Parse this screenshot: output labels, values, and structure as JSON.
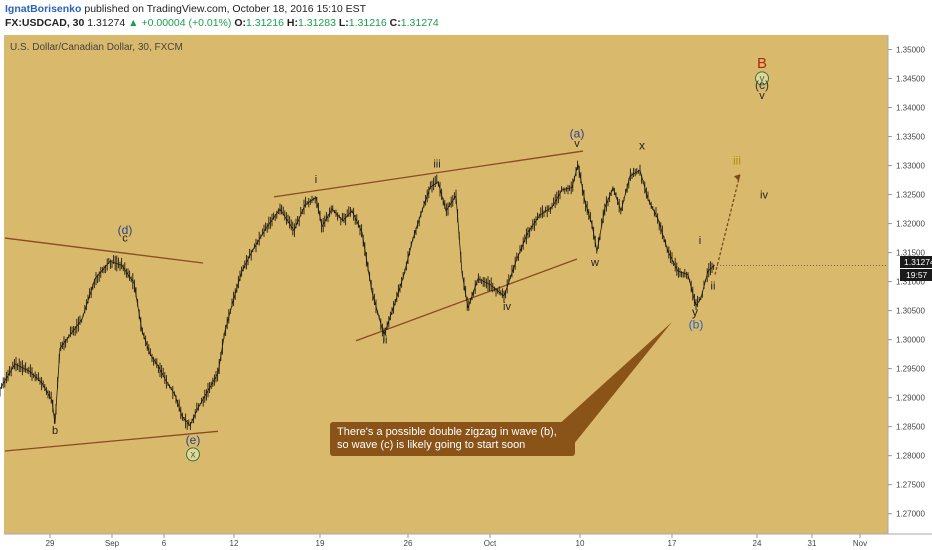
{
  "header": {
    "author": "IgnatBorisenko",
    "published_text": "published on TradingView.com, October 18, 2016 15:10 EST",
    "symbol": "FX:USDCAD, 30",
    "last": "1.31274",
    "change": "▲ +0.00004 (+0.01%)",
    "o_label": "O:",
    "o_value": "1.31216",
    "h_label": "H:",
    "h_value": "1.31283",
    "l_label": "L:",
    "l_value": "1.31216",
    "c_label": "C:",
    "c_value": "1.31274"
  },
  "chart_data": {
    "type": "line",
    "title": "U.S. Dollar/Canadian Dollar, 30, FXCM",
    "ylim": [
      1.2665,
      1.3525
    ],
    "y_ticks": [
      "1.35000",
      "1.34500",
      "1.34000",
      "1.33500",
      "1.33000",
      "1.32500",
      "1.32000",
      "1.31500",
      "1.31000",
      "1.30500",
      "1.30000",
      "1.29500",
      "1.29000",
      "1.28500",
      "1.28000",
      "1.27500",
      "1.27000"
    ],
    "y_tick_values": [
      1.35,
      1.345,
      1.34,
      1.335,
      1.33,
      1.325,
      1.32,
      1.315,
      1.31,
      1.305,
      1.3,
      1.295,
      1.29,
      1.285,
      1.28,
      1.275,
      1.27
    ],
    "x_ticks": [
      "29",
      "Sep",
      "6",
      "12",
      "19",
      "26",
      "Oct",
      "10",
      "17",
      "24",
      "31",
      "Nov"
    ],
    "x_tick_index": [
      50,
      112,
      164,
      234,
      320,
      408,
      490,
      580,
      672,
      757,
      812,
      860
    ],
    "current_price": "1.31274",
    "countdown": "19:57",
    "series": [
      {
        "values": [
          [
            0,
            1.2915
          ],
          [
            15,
            1.2958
          ],
          [
            30,
            1.2945
          ],
          [
            42,
            1.2925
          ],
          [
            52,
            1.2895
          ],
          [
            55,
            1.2855
          ],
          [
            60,
            1.2985
          ],
          [
            70,
            1.3008
          ],
          [
            82,
            1.3035
          ],
          [
            95,
            1.3105
          ],
          [
            110,
            1.3135
          ],
          [
            122,
            1.3128
          ],
          [
            128,
            1.3112
          ],
          [
            134,
            1.3098
          ],
          [
            142,
            1.3015
          ],
          [
            150,
            1.2975
          ],
          [
            158,
            1.2955
          ],
          [
            165,
            1.2932
          ],
          [
            175,
            1.2905
          ],
          [
            182,
            1.2868
          ],
          [
            190,
            1.2852
          ],
          [
            198,
            1.2882
          ],
          [
            208,
            1.2912
          ],
          [
            218,
            1.2942
          ],
          [
            225,
            1.3015
          ],
          [
            234,
            1.3072
          ],
          [
            242,
            1.3118
          ],
          [
            252,
            1.3152
          ],
          [
            266,
            1.3192
          ],
          [
            280,
            1.3225
          ],
          [
            294,
            1.3188
          ],
          [
            305,
            1.3232
          ],
          [
            316,
            1.3245
          ],
          [
            322,
            1.3195
          ],
          [
            332,
            1.3225
          ],
          [
            343,
            1.3205
          ],
          [
            352,
            1.3222
          ],
          [
            362,
            1.3185
          ],
          [
            372,
            1.3082
          ],
          [
            384,
            1.3008
          ],
          [
            394,
            1.3058
          ],
          [
            404,
            1.3112
          ],
          [
            412,
            1.3168
          ],
          [
            420,
            1.3212
          ],
          [
            430,
            1.3262
          ],
          [
            438,
            1.3272
          ],
          [
            446,
            1.3222
          ],
          [
            456,
            1.3248
          ],
          [
            462,
            1.3115
          ],
          [
            468,
            1.3055
          ],
          [
            478,
            1.3105
          ],
          [
            490,
            1.3095
          ],
          [
            504,
            1.3075
          ],
          [
            516,
            1.3135
          ],
          [
            528,
            1.3185
          ],
          [
            540,
            1.3215
          ],
          [
            552,
            1.3228
          ],
          [
            562,
            1.3258
          ],
          [
            572,
            1.3262
          ],
          [
            578,
            1.3302
          ],
          [
            585,
            1.3238
          ],
          [
            592,
            1.3198
          ],
          [
            597,
            1.3152
          ],
          [
            605,
            1.3228
          ],
          [
            613,
            1.3262
          ],
          [
            621,
            1.3222
          ],
          [
            630,
            1.3282
          ],
          [
            640,
            1.3292
          ],
          [
            648,
            1.3242
          ],
          [
            658,
            1.3208
          ],
          [
            668,
            1.3152
          ],
          [
            678,
            1.3118
          ],
          [
            688,
            1.3112
          ],
          [
            696,
            1.3058
          ],
          [
            701,
            1.3072
          ],
          [
            708,
            1.3118
          ],
          [
            714,
            1.31274
          ]
        ]
      }
    ],
    "wave_labels": [
      {
        "t": "B",
        "x": 762,
        "y": 1.3468,
        "c": "#b02a10",
        "s": 15
      },
      {
        "t": "y",
        "x": 762,
        "y": 1.3445,
        "c": "#2d7a40",
        "s": 10,
        "circle": true
      },
      {
        "t": "(c)",
        "x": 762,
        "y": 1.3432,
        "c": "#333",
        "s": 12
      },
      {
        "t": "v",
        "x": 762,
        "y": 1.3415,
        "c": "#222",
        "s": 11
      },
      {
        "t": "(a)",
        "x": 577,
        "y": 1.3348,
        "c": "#2a3f8a",
        "s": 12
      },
      {
        "t": "v",
        "x": 577,
        "y": 1.3332,
        "c": "#222",
        "s": 11
      },
      {
        "t": "x",
        "x": 642,
        "y": 1.3328,
        "c": "#222",
        "s": 12
      },
      {
        "t": "iii",
        "x": 737,
        "y": 1.3302,
        "c": "#b58a10",
        "s": 12
      },
      {
        "t": "iv",
        "x": 764,
        "y": 1.3243,
        "c": "#222",
        "s": 11
      },
      {
        "t": "iii",
        "x": 437,
        "y": 1.3297,
        "c": "#222",
        "s": 11
      },
      {
        "t": "i",
        "x": 316,
        "y": 1.327,
        "c": "#222",
        "s": 11
      },
      {
        "t": "(d)",
        "x": 125,
        "y": 1.3182,
        "c": "#2a3f8a",
        "s": 12
      },
      {
        "t": "c",
        "x": 125,
        "y": 1.3169,
        "c": "#222",
        "s": 11
      },
      {
        "t": "i",
        "x": 700,
        "y": 1.3165,
        "c": "#222",
        "s": 11
      },
      {
        "t": "w",
        "x": 595,
        "y": 1.3127,
        "c": "#222",
        "s": 11
      },
      {
        "t": "ii",
        "x": 713,
        "y": 1.3086,
        "c": "#222",
        "s": 11
      },
      {
        "t": "iv",
        "x": 507,
        "y": 1.3051,
        "c": "#222",
        "s": 11
      },
      {
        "t": "y",
        "x": 695,
        "y": 1.3041,
        "c": "#222",
        "s": 12
      },
      {
        "t": "(b)",
        "x": 696,
        "y": 1.3019,
        "c": "#2a63b8",
        "s": 12
      },
      {
        "t": "ii",
        "x": 385,
        "y": 1.2993,
        "c": "#222",
        "s": 11
      },
      {
        "t": "b",
        "x": 55,
        "y": 1.2837,
        "c": "#222",
        "s": 11
      },
      {
        "t": "(e)",
        "x": 193,
        "y": 1.282,
        "c": "#2a3f8a",
        "s": 12
      },
      {
        "t": "x",
        "x": 193,
        "y": 1.2797,
        "c": "#2d7a40",
        "s": 10,
        "circle": true
      }
    ],
    "trend_lines": [
      [
        [
          5,
          1.3175
        ],
        [
          203,
          1.3132
        ]
      ],
      [
        [
          5,
          1.2808
        ],
        [
          218,
          1.2842
        ]
      ],
      [
        [
          274,
          1.3246
        ],
        [
          583,
          1.3325
        ]
      ],
      [
        [
          356,
          1.2998
        ],
        [
          577,
          1.3139
        ]
      ],
      [
        [
          715,
          1.3112
        ],
        [
          740,
          1.3285
        ]
      ]
    ],
    "annotation": {
      "line1": "There's a possible double zigzag in wave (b),",
      "line2": "so wave (c) is likely going to start soon"
    }
  }
}
